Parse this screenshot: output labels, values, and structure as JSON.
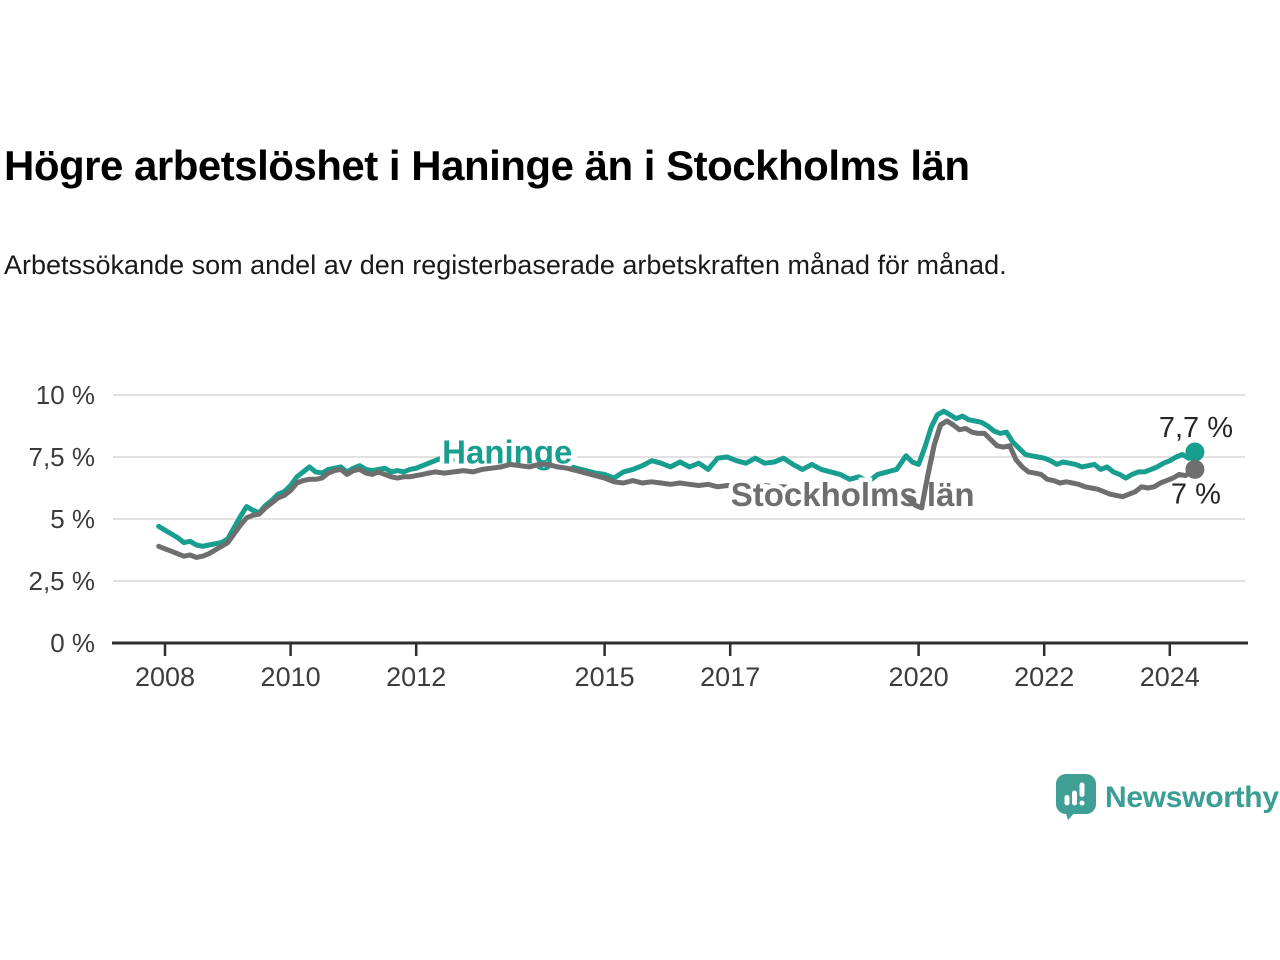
{
  "header": {
    "title": "Högre arbetslöshet i Haninge än i Stockholms län",
    "subtitle": "Arbetssökande som andel av den registerbaserade arbetskraften månad för månad."
  },
  "chart_data": {
    "type": "line",
    "unit": "%",
    "grid": true,
    "x_axis": {
      "ticks": [
        2008,
        2010,
        2012,
        2015,
        2017,
        2020,
        2022,
        2024
      ],
      "range": [
        2007.9,
        2025.2
      ]
    },
    "y_axis": {
      "ticks": [
        0,
        2.5,
        5,
        7.5,
        10
      ],
      "tick_labels": [
        "0 %",
        "2,5 %",
        "5 %",
        "7,5 %",
        "10 %"
      ],
      "range": [
        0,
        10
      ]
    },
    "colors": {
      "haninge": "#179e8e",
      "stockholms_lan": "#6e6e6e",
      "grid": "#d9d9d9",
      "axis": "#2e2e2e",
      "axis_text": "#3c3c3c",
      "end_label_text": "#262626"
    },
    "series": [
      {
        "name": "Haninge",
        "color": "#179e8e",
        "end_label": "7,7 %",
        "last_value": 7.7,
        "inline_label_pos": {
          "x": 2013.45,
          "y": 7.72
        },
        "points": [
          [
            2007.9,
            4.7
          ],
          [
            2008.0,
            4.55
          ],
          [
            2008.1,
            4.4
          ],
          [
            2008.2,
            4.25
          ],
          [
            2008.3,
            4.05
          ],
          [
            2008.4,
            4.1
          ],
          [
            2008.5,
            3.95
          ],
          [
            2008.6,
            3.9
          ],
          [
            2008.7,
            3.95
          ],
          [
            2008.8,
            4.0
          ],
          [
            2008.9,
            4.05
          ],
          [
            2009.0,
            4.2
          ],
          [
            2009.1,
            4.65
          ],
          [
            2009.2,
            5.1
          ],
          [
            2009.3,
            5.5
          ],
          [
            2009.4,
            5.35
          ],
          [
            2009.5,
            5.25
          ],
          [
            2009.6,
            5.55
          ],
          [
            2009.7,
            5.75
          ],
          [
            2009.8,
            6.0
          ],
          [
            2009.9,
            6.1
          ],
          [
            2010.0,
            6.35
          ],
          [
            2010.1,
            6.7
          ],
          [
            2010.2,
            6.9
          ],
          [
            2010.3,
            7.1
          ],
          [
            2010.4,
            6.9
          ],
          [
            2010.5,
            6.85
          ],
          [
            2010.6,
            7.0
          ],
          [
            2010.7,
            7.05
          ],
          [
            2010.8,
            7.1
          ],
          [
            2010.9,
            6.9
          ],
          [
            2011.0,
            7.05
          ],
          [
            2011.1,
            7.15
          ],
          [
            2011.2,
            7.0
          ],
          [
            2011.3,
            6.95
          ],
          [
            2011.4,
            7.0
          ],
          [
            2011.5,
            7.05
          ],
          [
            2011.6,
            6.9
          ],
          [
            2011.7,
            6.95
          ],
          [
            2011.8,
            6.9
          ],
          [
            2011.9,
            7.0
          ],
          [
            2012.0,
            7.05
          ],
          [
            2012.1,
            7.15
          ],
          [
            2012.2,
            7.25
          ],
          [
            2012.3,
            7.35
          ],
          [
            2012.45,
            7.5
          ],
          [
            2012.6,
            7.4
          ],
          [
            2012.75,
            7.45
          ],
          [
            2012.9,
            7.5
          ],
          [
            2013.05,
            7.45
          ],
          [
            2013.2,
            7.5
          ],
          [
            2013.35,
            7.45
          ],
          [
            2013.5,
            7.4
          ],
          [
            2013.65,
            7.35
          ],
          [
            2013.8,
            7.4
          ],
          [
            2013.95,
            7.35
          ],
          [
            2014.1,
            7.3
          ],
          [
            2014.25,
            7.2
          ],
          [
            2014.4,
            7.15
          ],
          [
            2014.55,
            7.05
          ],
          [
            2014.7,
            6.95
          ],
          [
            2014.85,
            6.85
          ],
          [
            2015.0,
            6.8
          ],
          [
            2015.15,
            6.65
          ],
          [
            2015.3,
            6.9
          ],
          [
            2015.45,
            7.0
          ],
          [
            2015.6,
            7.15
          ],
          [
            2015.75,
            7.35
          ],
          [
            2015.9,
            7.25
          ],
          [
            2016.05,
            7.1
          ],
          [
            2016.2,
            7.3
          ],
          [
            2016.35,
            7.1
          ],
          [
            2016.5,
            7.25
          ],
          [
            2016.65,
            7.0
          ],
          [
            2016.8,
            7.45
          ],
          [
            2016.95,
            7.5
          ],
          [
            2017.1,
            7.35
          ],
          [
            2017.25,
            7.25
          ],
          [
            2017.4,
            7.45
          ],
          [
            2017.55,
            7.25
          ],
          [
            2017.7,
            7.3
          ],
          [
            2017.85,
            7.45
          ],
          [
            2018.0,
            7.2
          ],
          [
            2018.15,
            7.0
          ],
          [
            2018.3,
            7.2
          ],
          [
            2018.45,
            7.0
          ],
          [
            2018.6,
            6.9
          ],
          [
            2018.75,
            6.8
          ],
          [
            2018.9,
            6.6
          ],
          [
            2019.05,
            6.7
          ],
          [
            2019.2,
            6.5
          ],
          [
            2019.35,
            6.8
          ],
          [
            2019.5,
            6.9
          ],
          [
            2019.65,
            7.0
          ],
          [
            2019.8,
            7.55
          ],
          [
            2019.9,
            7.3
          ],
          [
            2020.0,
            7.2
          ],
          [
            2020.1,
            7.9
          ],
          [
            2020.2,
            8.7
          ],
          [
            2020.3,
            9.2
          ],
          [
            2020.4,
            9.35
          ],
          [
            2020.5,
            9.2
          ],
          [
            2020.6,
            9.05
          ],
          [
            2020.7,
            9.15
          ],
          [
            2020.8,
            9.0
          ],
          [
            2020.9,
            8.95
          ],
          [
            2021.0,
            8.9
          ],
          [
            2021.1,
            8.75
          ],
          [
            2021.2,
            8.55
          ],
          [
            2021.3,
            8.45
          ],
          [
            2021.4,
            8.5
          ],
          [
            2021.5,
            8.1
          ],
          [
            2021.6,
            7.85
          ],
          [
            2021.7,
            7.6
          ],
          [
            2021.8,
            7.55
          ],
          [
            2021.9,
            7.5
          ],
          [
            2022.0,
            7.45
          ],
          [
            2022.1,
            7.35
          ],
          [
            2022.2,
            7.2
          ],
          [
            2022.3,
            7.3
          ],
          [
            2022.4,
            7.25
          ],
          [
            2022.5,
            7.2
          ],
          [
            2022.6,
            7.1
          ],
          [
            2022.7,
            7.15
          ],
          [
            2022.8,
            7.2
          ],
          [
            2022.9,
            7.0
          ],
          [
            2023.0,
            7.1
          ],
          [
            2023.1,
            6.9
          ],
          [
            2023.2,
            6.8
          ],
          [
            2023.3,
            6.65
          ],
          [
            2023.4,
            6.8
          ],
          [
            2023.5,
            6.9
          ],
          [
            2023.6,
            6.9
          ],
          [
            2023.7,
            7.0
          ],
          [
            2023.8,
            7.1
          ],
          [
            2023.9,
            7.25
          ],
          [
            2024.0,
            7.35
          ],
          [
            2024.1,
            7.5
          ],
          [
            2024.2,
            7.6
          ],
          [
            2024.3,
            7.45
          ],
          [
            2024.4,
            7.7
          ]
        ]
      },
      {
        "name": "Stockholms län",
        "color": "#6e6e6e",
        "end_label": "7 %",
        "last_value": 7.0,
        "inline_label_pos": {
          "x": 2018.95,
          "y": 6.0
        },
        "points": [
          [
            2007.9,
            3.9
          ],
          [
            2008.0,
            3.8
          ],
          [
            2008.1,
            3.7
          ],
          [
            2008.2,
            3.6
          ],
          [
            2008.3,
            3.5
          ],
          [
            2008.4,
            3.55
          ],
          [
            2008.5,
            3.45
          ],
          [
            2008.6,
            3.5
          ],
          [
            2008.7,
            3.6
          ],
          [
            2008.8,
            3.75
          ],
          [
            2008.9,
            3.9
          ],
          [
            2009.0,
            4.05
          ],
          [
            2009.1,
            4.4
          ],
          [
            2009.2,
            4.75
          ],
          [
            2009.3,
            5.05
          ],
          [
            2009.4,
            5.15
          ],
          [
            2009.5,
            5.2
          ],
          [
            2009.6,
            5.45
          ],
          [
            2009.7,
            5.65
          ],
          [
            2009.8,
            5.85
          ],
          [
            2009.9,
            5.95
          ],
          [
            2010.0,
            6.15
          ],
          [
            2010.1,
            6.45
          ],
          [
            2010.2,
            6.55
          ],
          [
            2010.3,
            6.6
          ],
          [
            2010.4,
            6.6
          ],
          [
            2010.5,
            6.65
          ],
          [
            2010.6,
            6.85
          ],
          [
            2010.7,
            6.95
          ],
          [
            2010.8,
            7.0
          ],
          [
            2010.9,
            6.8
          ],
          [
            2011.0,
            6.95
          ],
          [
            2011.1,
            7.0
          ],
          [
            2011.2,
            6.85
          ],
          [
            2011.3,
            6.8
          ],
          [
            2011.4,
            6.9
          ],
          [
            2011.5,
            6.8
          ],
          [
            2011.6,
            6.7
          ],
          [
            2011.7,
            6.65
          ],
          [
            2011.8,
            6.7
          ],
          [
            2011.9,
            6.7
          ],
          [
            2012.0,
            6.75
          ],
          [
            2012.1,
            6.8
          ],
          [
            2012.2,
            6.85
          ],
          [
            2012.3,
            6.9
          ],
          [
            2012.45,
            6.85
          ],
          [
            2012.6,
            6.9
          ],
          [
            2012.75,
            6.95
          ],
          [
            2012.9,
            6.9
          ],
          [
            2013.05,
            7.0
          ],
          [
            2013.2,
            7.05
          ],
          [
            2013.35,
            7.1
          ],
          [
            2013.5,
            7.2
          ],
          [
            2013.65,
            7.15
          ],
          [
            2013.8,
            7.1
          ],
          [
            2013.95,
            7.2
          ],
          [
            2014.1,
            7.2
          ],
          [
            2014.25,
            7.1
          ],
          [
            2014.4,
            7.05
          ],
          [
            2014.55,
            6.95
          ],
          [
            2014.7,
            6.85
          ],
          [
            2014.85,
            6.75
          ],
          [
            2015.0,
            6.65
          ],
          [
            2015.15,
            6.5
          ],
          [
            2015.3,
            6.45
          ],
          [
            2015.45,
            6.55
          ],
          [
            2015.6,
            6.45
          ],
          [
            2015.75,
            6.5
          ],
          [
            2015.9,
            6.45
          ],
          [
            2016.05,
            6.4
          ],
          [
            2016.2,
            6.45
          ],
          [
            2016.35,
            6.4
          ],
          [
            2016.5,
            6.35
          ],
          [
            2016.65,
            6.4
          ],
          [
            2016.8,
            6.3
          ],
          [
            2016.95,
            6.35
          ],
          [
            2017.1,
            6.3
          ],
          [
            2017.25,
            6.4
          ],
          [
            2017.4,
            6.35
          ],
          [
            2017.55,
            6.35
          ],
          [
            2017.7,
            6.3
          ],
          [
            2017.85,
            6.3
          ],
          [
            2018.0,
            6.25
          ],
          [
            2018.15,
            6.25
          ],
          [
            2018.3,
            6.2
          ],
          [
            2018.45,
            6.2
          ],
          [
            2018.6,
            6.15
          ],
          [
            2018.75,
            6.1
          ],
          [
            2018.9,
            6.05
          ],
          [
            2019.05,
            6.0
          ],
          [
            2019.2,
            6.0
          ],
          [
            2019.35,
            6.1
          ],
          [
            2019.5,
            6.2
          ],
          [
            2019.65,
            6.15
          ],
          [
            2019.8,
            5.9
          ],
          [
            2019.95,
            5.55
          ],
          [
            2020.05,
            5.45
          ],
          [
            2020.15,
            6.8
          ],
          [
            2020.25,
            8.0
          ],
          [
            2020.35,
            8.8
          ],
          [
            2020.45,
            8.95
          ],
          [
            2020.55,
            8.8
          ],
          [
            2020.65,
            8.6
          ],
          [
            2020.75,
            8.65
          ],
          [
            2020.85,
            8.5
          ],
          [
            2020.95,
            8.45
          ],
          [
            2021.05,
            8.45
          ],
          [
            2021.15,
            8.2
          ],
          [
            2021.25,
            7.95
          ],
          [
            2021.35,
            7.9
          ],
          [
            2021.45,
            7.95
          ],
          [
            2021.55,
            7.4
          ],
          [
            2021.65,
            7.1
          ],
          [
            2021.75,
            6.9
          ],
          [
            2021.85,
            6.85
          ],
          [
            2021.95,
            6.8
          ],
          [
            2022.05,
            6.6
          ],
          [
            2022.15,
            6.55
          ],
          [
            2022.25,
            6.45
          ],
          [
            2022.35,
            6.5
          ],
          [
            2022.45,
            6.45
          ],
          [
            2022.55,
            6.4
          ],
          [
            2022.65,
            6.3
          ],
          [
            2022.75,
            6.25
          ],
          [
            2022.85,
            6.2
          ],
          [
            2022.95,
            6.1
          ],
          [
            2023.05,
            6.0
          ],
          [
            2023.15,
            5.95
          ],
          [
            2023.25,
            5.9
          ],
          [
            2023.35,
            6.0
          ],
          [
            2023.45,
            6.1
          ],
          [
            2023.55,
            6.3
          ],
          [
            2023.65,
            6.25
          ],
          [
            2023.75,
            6.3
          ],
          [
            2023.85,
            6.45
          ],
          [
            2023.95,
            6.55
          ],
          [
            2024.05,
            6.65
          ],
          [
            2024.15,
            6.8
          ],
          [
            2024.25,
            6.75
          ],
          [
            2024.4,
            7.0
          ]
        ]
      }
    ]
  },
  "footer": {
    "brand": "Newsworthy"
  }
}
